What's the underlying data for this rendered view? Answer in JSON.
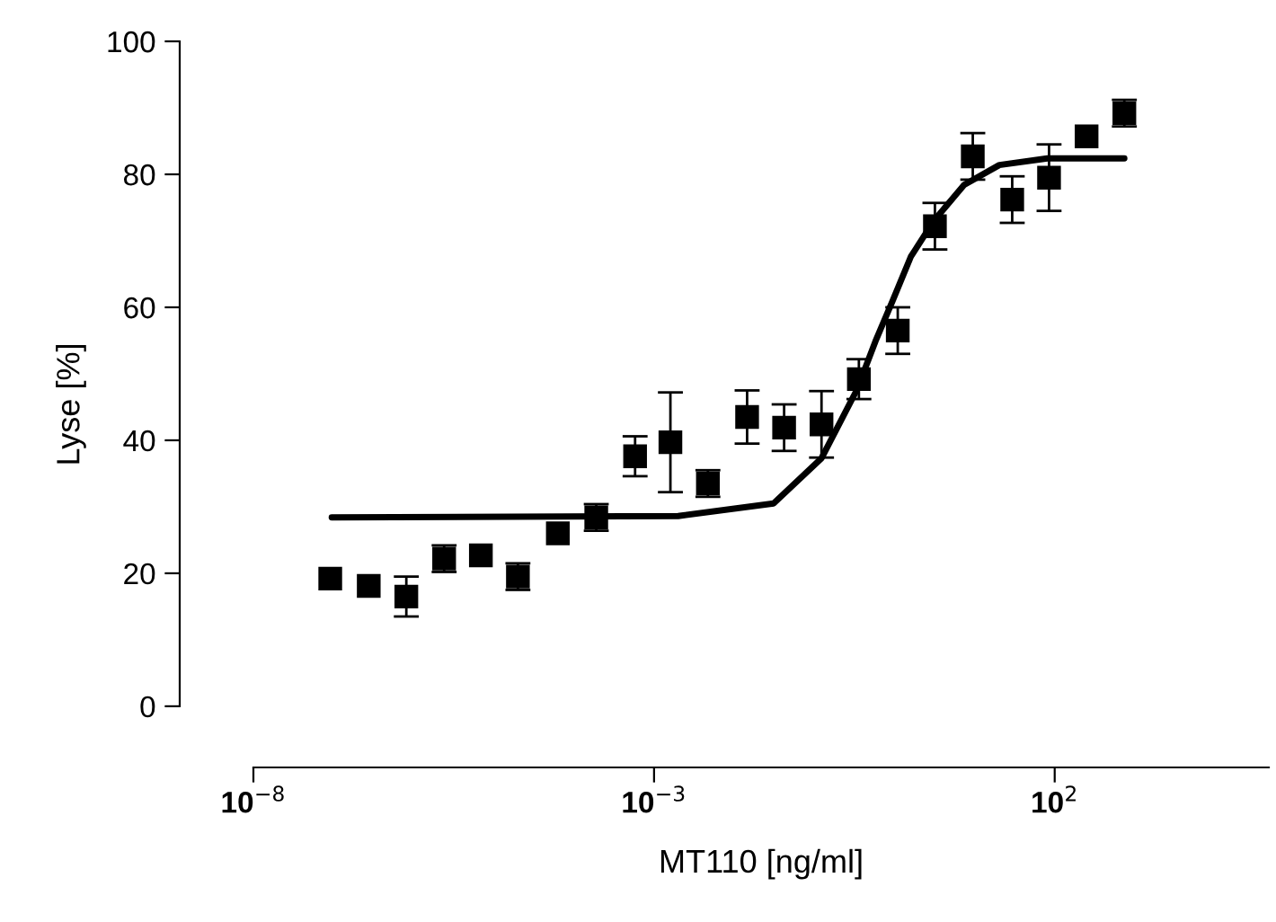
{
  "chart_data": {
    "type": "scatter",
    "xlabel": "MT110 [ng/ml]",
    "ylabel": "Lyse [%]",
    "log": "x",
    "xlim": [
      1e-08,
      47000
    ],
    "ylim": [
      -9.2,
      100
    ],
    "xticks": [
      {
        "value": 1e-08,
        "label": "10$^{−8}$"
      },
      {
        "value": 0.001,
        "label": "10$^{−3}$"
      },
      {
        "value": 100,
        "label": "10$^{2}$"
      }
    ],
    "yticks": [
      0,
      20,
      40,
      60,
      80,
      100
    ],
    "grid": false,
    "legend": false,
    "series": [
      {
        "color": "#000000",
        "marker": "square",
        "x": [
          9.1e-08,
          2.75e-07,
          8.1e-07,
          2.4e-06,
          6.9e-06,
          2e-05,
          6.3e-05,
          0.00019,
          0.00058,
          0.0016,
          0.0047,
          0.0145,
          0.042,
          0.123,
          0.36,
          1.1,
          3.2,
          9.5,
          29.5,
          85,
          250,
          740
        ],
        "values": [
          19.2,
          18.1,
          16.5,
          22.2,
          22.7,
          19.5,
          26,
          28.4,
          37.6,
          39.7,
          33.5,
          43.5,
          41.9,
          42.4,
          49.2,
          56.5,
          72.2,
          82.7,
          76.2,
          79.5,
          85.7,
          89.2
        ],
        "errors": [
          null,
          null,
          3,
          2,
          null,
          2,
          null,
          2,
          3,
          7.5,
          2,
          4,
          3.5,
          5,
          3,
          3.5,
          3.5,
          3.5,
          3.5,
          5,
          null,
          2
        ]
      },
      {
        "type": "line",
        "color": "#000000",
        "marker": "none",
        "line_style": "solid",
        "x": [
          9.5e-08,
          0.002,
          0.031,
          0.123,
          0.34,
          0.58,
          0.95,
          1.6,
          3.1,
          7.4,
          20.4,
          81,
          740
        ],
        "values": [
          28.4,
          28.6,
          30.5,
          37.3,
          47.6,
          54.9,
          61,
          67.6,
          73,
          78.4,
          81.4,
          82.4,
          82.4
        ]
      }
    ]
  }
}
